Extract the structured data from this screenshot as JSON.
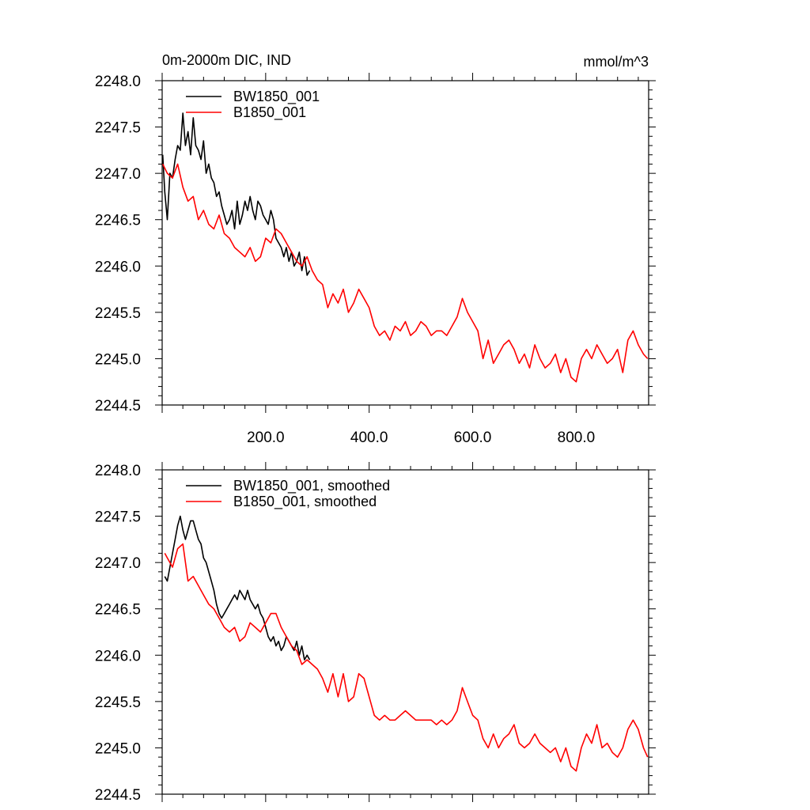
{
  "title_left": "0m-2000m DIC, IND",
  "title_right": "mmol/m^3",
  "colors": {
    "bw": "#000000",
    "b": "#ff0000",
    "axis": "#000000"
  },
  "chart_data": [
    {
      "type": "line",
      "panel": "top",
      "xlim": [
        0,
        940
      ],
      "ylim": [
        2244.5,
        2248.0
      ],
      "yticks": [
        "2244.5",
        "2245.0",
        "2245.5",
        "2246.0",
        "2246.5",
        "2247.0",
        "2247.5",
        "2248.0"
      ],
      "xticks": [
        "200.0",
        "400.0",
        "600.0",
        "800.0"
      ],
      "grid": false,
      "legend_position": "top-left",
      "series": [
        {
          "name": "BW1850_001",
          "color": "#000000",
          "x": [
            1,
            5,
            10,
            15,
            20,
            25,
            30,
            35,
            40,
            45,
            50,
            55,
            60,
            65,
            70,
            75,
            80,
            85,
            90,
            95,
            100,
            105,
            110,
            115,
            120,
            125,
            130,
            135,
            140,
            145,
            150,
            155,
            160,
            165,
            170,
            175,
            180,
            185,
            190,
            195,
            200,
            205,
            210,
            215,
            220,
            225,
            230,
            235,
            240,
            245,
            250,
            255,
            260,
            265,
            270,
            275,
            280,
            285
          ],
          "y": [
            2247.2,
            2246.8,
            2246.5,
            2247.0,
            2246.95,
            2247.15,
            2247.3,
            2247.25,
            2247.65,
            2247.3,
            2247.45,
            2247.2,
            2247.6,
            2247.3,
            2247.25,
            2247.15,
            2247.35,
            2247.0,
            2247.1,
            2246.95,
            2246.9,
            2246.75,
            2246.8,
            2246.65,
            2246.55,
            2246.45,
            2246.5,
            2246.6,
            2246.4,
            2246.7,
            2246.45,
            2246.55,
            2246.7,
            2246.6,
            2246.75,
            2246.6,
            2246.5,
            2246.7,
            2246.65,
            2246.55,
            2246.5,
            2246.45,
            2246.6,
            2246.5,
            2246.3,
            2246.25,
            2246.2,
            2246.1,
            2246.2,
            2246.05,
            2246.15,
            2246.0,
            2246.05,
            2246.15,
            2245.95,
            2246.1,
            2245.9,
            2245.95
          ]
        },
        {
          "name": "B1850_001",
          "color": "#ff0000",
          "x": [
            1,
            10,
            20,
            30,
            40,
            50,
            60,
            70,
            80,
            90,
            100,
            110,
            120,
            130,
            140,
            150,
            160,
            170,
            180,
            190,
            200,
            210,
            220,
            230,
            240,
            250,
            260,
            270,
            280,
            290,
            300,
            310,
            320,
            330,
            340,
            350,
            360,
            370,
            380,
            390,
            400,
            410,
            420,
            430,
            440,
            450,
            460,
            470,
            480,
            490,
            500,
            510,
            520,
            530,
            540,
            550,
            560,
            570,
            580,
            590,
            600,
            610,
            620,
            630,
            640,
            650,
            660,
            670,
            680,
            690,
            700,
            710,
            720,
            730,
            740,
            750,
            760,
            770,
            780,
            790,
            800,
            810,
            820,
            830,
            840,
            850,
            860,
            870,
            880,
            890,
            900,
            910,
            920,
            930,
            938
          ],
          "y": [
            2247.1,
            2247.0,
            2246.95,
            2247.1,
            2246.85,
            2246.7,
            2246.75,
            2246.5,
            2246.6,
            2246.45,
            2246.4,
            2246.55,
            2246.35,
            2246.3,
            2246.2,
            2246.15,
            2246.1,
            2246.2,
            2246.05,
            2246.1,
            2246.3,
            2246.25,
            2246.4,
            2246.35,
            2246.25,
            2246.15,
            2246.05,
            2246.0,
            2246.1,
            2245.95,
            2245.85,
            2245.8,
            2245.55,
            2245.7,
            2245.6,
            2245.75,
            2245.5,
            2245.6,
            2245.75,
            2245.65,
            2245.55,
            2245.35,
            2245.25,
            2245.3,
            2245.2,
            2245.35,
            2245.3,
            2245.4,
            2245.25,
            2245.3,
            2245.4,
            2245.35,
            2245.25,
            2245.3,
            2245.3,
            2245.25,
            2245.35,
            2245.45,
            2245.65,
            2245.5,
            2245.4,
            2245.3,
            2245.0,
            2245.2,
            2244.95,
            2245.05,
            2245.15,
            2245.2,
            2245.1,
            2244.95,
            2245.05,
            2244.9,
            2245.15,
            2245.0,
            2244.9,
            2244.95,
            2245.05,
            2244.85,
            2245.0,
            2244.8,
            2244.75,
            2245.0,
            2245.1,
            2245.0,
            2245.15,
            2245.05,
            2244.95,
            2245.0,
            2245.1,
            2244.85,
            2245.2,
            2245.3,
            2245.15,
            2245.05,
            2245.0
          ]
        }
      ]
    },
    {
      "type": "line",
      "panel": "bottom",
      "xlim": [
        0,
        940
      ],
      "ylim": [
        2244.5,
        2248.0
      ],
      "yticks": [
        "2244.5",
        "2245.0",
        "2245.5",
        "2246.0",
        "2246.5",
        "2247.0",
        "2247.5",
        "2248.0"
      ],
      "grid": false,
      "legend_position": "top-left",
      "series": [
        {
          "name": "BW1850_001, smoothed",
          "color": "#000000",
          "x": [
            5,
            10,
            15,
            20,
            25,
            30,
            35,
            40,
            45,
            50,
            55,
            60,
            65,
            70,
            75,
            80,
            85,
            90,
            95,
            100,
            105,
            110,
            115,
            120,
            125,
            130,
            135,
            140,
            145,
            150,
            155,
            160,
            165,
            170,
            175,
            180,
            185,
            190,
            195,
            200,
            205,
            210,
            215,
            220,
            225,
            230,
            235,
            240,
            245,
            250,
            255,
            260,
            265,
            270,
            275,
            280,
            285
          ],
          "y": [
            2246.85,
            2246.8,
            2246.95,
            2247.1,
            2247.25,
            2247.4,
            2247.5,
            2247.35,
            2247.25,
            2247.35,
            2247.45,
            2247.45,
            2247.35,
            2247.25,
            2247.2,
            2247.05,
            2247.0,
            2246.9,
            2246.8,
            2246.7,
            2246.55,
            2246.45,
            2246.4,
            2246.45,
            2246.5,
            2246.55,
            2246.6,
            2246.65,
            2246.6,
            2246.7,
            2246.65,
            2246.6,
            2246.7,
            2246.6,
            2246.55,
            2246.5,
            2246.55,
            2246.45,
            2246.4,
            2246.3,
            2246.2,
            2246.15,
            2246.2,
            2246.1,
            2246.15,
            2246.05,
            2246.1,
            2246.2,
            2246.15,
            2246.1,
            2246.05,
            2246.15,
            2246.0,
            2246.1,
            2245.95,
            2246.0,
            2245.95
          ]
        },
        {
          "name": "B1850_001, smoothed",
          "color": "#ff0000",
          "x": [
            5,
            10,
            20,
            30,
            40,
            50,
            60,
            70,
            80,
            90,
            100,
            110,
            120,
            130,
            140,
            150,
            160,
            170,
            180,
            190,
            200,
            210,
            220,
            230,
            240,
            250,
            260,
            270,
            280,
            290,
            300,
            310,
            320,
            330,
            340,
            350,
            360,
            370,
            380,
            390,
            400,
            410,
            420,
            430,
            440,
            450,
            460,
            470,
            480,
            490,
            500,
            510,
            520,
            530,
            540,
            550,
            560,
            570,
            580,
            590,
            600,
            610,
            620,
            630,
            640,
            650,
            660,
            670,
            680,
            690,
            700,
            710,
            720,
            730,
            740,
            750,
            760,
            770,
            780,
            790,
            800,
            810,
            820,
            830,
            840,
            850,
            860,
            870,
            880,
            890,
            900,
            910,
            920,
            930,
            938
          ],
          "y": [
            2247.1,
            2247.05,
            2246.95,
            2247.15,
            2247.2,
            2246.8,
            2246.85,
            2246.75,
            2246.65,
            2246.55,
            2246.5,
            2246.4,
            2246.3,
            2246.25,
            2246.3,
            2246.15,
            2246.2,
            2246.35,
            2246.3,
            2246.25,
            2246.35,
            2246.45,
            2246.45,
            2246.3,
            2246.2,
            2246.1,
            2246.05,
            2245.9,
            2245.95,
            2245.9,
            2245.85,
            2245.75,
            2245.6,
            2245.8,
            2245.55,
            2245.8,
            2245.5,
            2245.55,
            2245.8,
            2245.75,
            2245.55,
            2245.35,
            2245.3,
            2245.35,
            2245.3,
            2245.3,
            2245.35,
            2245.4,
            2245.35,
            2245.3,
            2245.3,
            2245.3,
            2245.3,
            2245.25,
            2245.3,
            2245.25,
            2245.3,
            2245.4,
            2245.65,
            2245.5,
            2245.35,
            2245.3,
            2245.1,
            2245.0,
            2245.15,
            2245.0,
            2245.1,
            2245.15,
            2245.25,
            2245.05,
            2245.0,
            2245.05,
            2245.15,
            2245.05,
            2245.0,
            2244.95,
            2245.0,
            2244.85,
            2245.0,
            2244.8,
            2244.75,
            2245.0,
            2245.15,
            2245.05,
            2245.25,
            2245.0,
            2245.05,
            2244.95,
            2244.9,
            2245.0,
            2245.2,
            2245.3,
            2245.2,
            2245.0,
            2244.9
          ]
        }
      ]
    }
  ]
}
